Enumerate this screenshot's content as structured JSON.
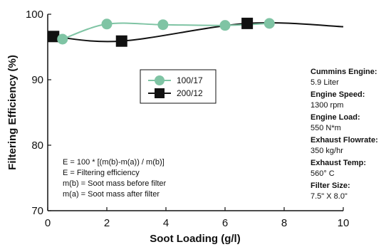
{
  "chart_data": {
    "type": "line",
    "xlabel": "Soot Loading (g/l)",
    "ylabel": "Filtering Efficiency (%)",
    "xlim": [
      0,
      10
    ],
    "ylim": [
      70,
      100
    ],
    "xticks": [
      "0",
      "2",
      "4",
      "6",
      "8",
      "10"
    ],
    "yticks": [
      "70",
      "80",
      "90",
      "100"
    ],
    "grid": false,
    "legend_position": "center",
    "series": [
      {
        "name": "100/17",
        "marker": "circle",
        "color": "#7fc4a4",
        "line_color": "#7fc4a4",
        "x": [
          0.5,
          2.0,
          3.9,
          6.0,
          7.5
        ],
        "y": [
          96.2,
          98.5,
          98.4,
          98.3,
          98.6
        ]
      },
      {
        "name": "200/12",
        "marker": "square",
        "color": "#111111",
        "line_color": "#111111",
        "x": [
          0.2,
          2.5,
          6.75
        ],
        "y": [
          96.6,
          95.9,
          98.6
        ]
      }
    ],
    "black_line_tail": {
      "x": 10.0,
      "y": 98.1
    },
    "annotations": [
      "E = 100 * [(m(b)-m(a)) / m(b)]",
      "E = Filtering efficiency",
      "m(b) = Soot mass before filter",
      "m(a) = Soot mass after filter"
    ],
    "info": [
      {
        "label": "Cummins Engine:",
        "value": "5.9 Liter"
      },
      {
        "label": "Engine Speed:",
        "value": "1300 rpm"
      },
      {
        "label": "Engine Load:",
        "value": "550 N*m"
      },
      {
        "label": "Exhaust Flowrate:",
        "value": "350 kg/hr"
      },
      {
        "label": "Exhaust Temp:",
        "value": "560° C"
      },
      {
        "label": "Filter Size:",
        "value": "7.5\" X 8.0\""
      }
    ]
  }
}
